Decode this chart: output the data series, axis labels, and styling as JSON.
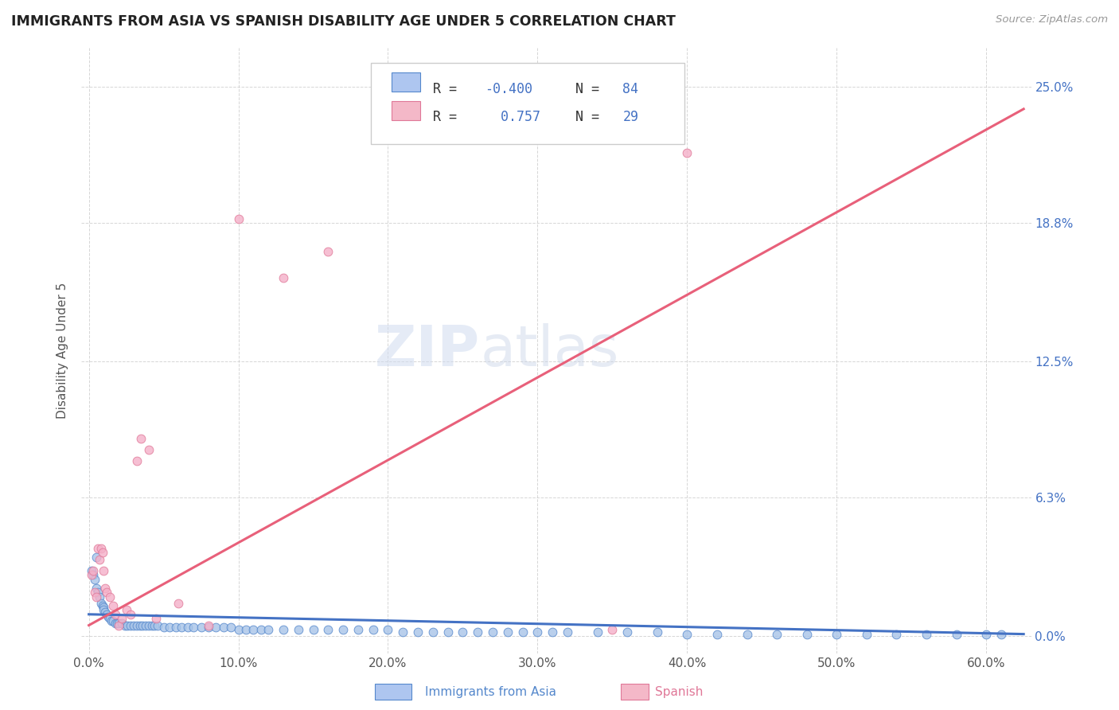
{
  "title": "IMMIGRANTS FROM ASIA VS SPANISH DISABILITY AGE UNDER 5 CORRELATION CHART",
  "source": "Source: ZipAtlas.com",
  "ylabel_label": "Disability Age Under 5",
  "blue_color": "#a8c4e8",
  "blue_edge": "#5588cc",
  "pink_color": "#f4b0c8",
  "pink_edge": "#e07898",
  "blue_line_color": "#4472c4",
  "pink_line_color": "#e8607a",
  "watermark_zip": "ZIP",
  "watermark_atlas": "atlas",
  "background_color": "#ffffff",
  "grid_color": "#cccccc",
  "legend_R_color": "#4472c4",
  "legend_text_color": "#333333",
  "right_tick_color": "#4472c4",
  "blue_label": "Immigrants from Asia",
  "pink_label": "Spanish",
  "blue_points_x": [
    0.002,
    0.003,
    0.004,
    0.005,
    0.006,
    0.007,
    0.008,
    0.009,
    0.01,
    0.01,
    0.011,
    0.012,
    0.013,
    0.014,
    0.015,
    0.016,
    0.018,
    0.019,
    0.02,
    0.022,
    0.024,
    0.026,
    0.028,
    0.03,
    0.032,
    0.034,
    0.036,
    0.038,
    0.04,
    0.042,
    0.044,
    0.046,
    0.05,
    0.054,
    0.058,
    0.062,
    0.066,
    0.07,
    0.075,
    0.08,
    0.085,
    0.09,
    0.095,
    0.1,
    0.105,
    0.11,
    0.115,
    0.12,
    0.13,
    0.14,
    0.15,
    0.16,
    0.17,
    0.18,
    0.19,
    0.2,
    0.21,
    0.22,
    0.23,
    0.24,
    0.25,
    0.26,
    0.27,
    0.28,
    0.29,
    0.3,
    0.31,
    0.32,
    0.34,
    0.36,
    0.38,
    0.4,
    0.42,
    0.44,
    0.46,
    0.48,
    0.5,
    0.52,
    0.54,
    0.56,
    0.58,
    0.6,
    0.61,
    0.005
  ],
  "blue_points_y": [
    0.03,
    0.028,
    0.026,
    0.022,
    0.02,
    0.018,
    0.015,
    0.014,
    0.013,
    0.012,
    0.011,
    0.01,
    0.009,
    0.008,
    0.007,
    0.007,
    0.006,
    0.006,
    0.006,
    0.006,
    0.005,
    0.005,
    0.005,
    0.005,
    0.005,
    0.005,
    0.005,
    0.005,
    0.005,
    0.005,
    0.005,
    0.005,
    0.004,
    0.004,
    0.004,
    0.004,
    0.004,
    0.004,
    0.004,
    0.004,
    0.004,
    0.004,
    0.004,
    0.003,
    0.003,
    0.003,
    0.003,
    0.003,
    0.003,
    0.003,
    0.003,
    0.003,
    0.003,
    0.003,
    0.003,
    0.003,
    0.002,
    0.002,
    0.002,
    0.002,
    0.002,
    0.002,
    0.002,
    0.002,
    0.002,
    0.002,
    0.002,
    0.002,
    0.002,
    0.002,
    0.002,
    0.001,
    0.001,
    0.001,
    0.001,
    0.001,
    0.001,
    0.001,
    0.001,
    0.001,
    0.001,
    0.001,
    0.001,
    0.036
  ],
  "pink_points_x": [
    0.002,
    0.003,
    0.004,
    0.005,
    0.006,
    0.007,
    0.008,
    0.009,
    0.01,
    0.011,
    0.012,
    0.014,
    0.016,
    0.018,
    0.02,
    0.022,
    0.025,
    0.028,
    0.032,
    0.035,
    0.04,
    0.045,
    0.06,
    0.08,
    0.1,
    0.13,
    0.16,
    0.4,
    0.35
  ],
  "pink_points_y": [
    0.028,
    0.03,
    0.02,
    0.018,
    0.04,
    0.035,
    0.04,
    0.038,
    0.03,
    0.022,
    0.02,
    0.018,
    0.014,
    0.01,
    0.005,
    0.008,
    0.012,
    0.01,
    0.08,
    0.09,
    0.085,
    0.008,
    0.015,
    0.005,
    0.19,
    0.163,
    0.175,
    0.22,
    0.003
  ],
  "blue_line_x0": 0.0,
  "blue_line_x1": 0.625,
  "blue_line_y0": 0.01,
  "blue_line_y1": 0.001,
  "pink_line_x0": 0.0,
  "pink_line_x1": 0.625,
  "pink_line_y0": 0.005,
  "pink_line_y1": 0.24,
  "xlim_lo": -0.005,
  "xlim_hi": 0.63,
  "ylim_lo": -0.008,
  "ylim_hi": 0.268,
  "xtick_vals": [
    0.0,
    0.1,
    0.2,
    0.3,
    0.4,
    0.5,
    0.6
  ],
  "xtick_labels": [
    "0.0%",
    "10.0%",
    "20.0%",
    "30.0%",
    "40.0%",
    "50.0%",
    "60.0%"
  ],
  "ytick_vals": [
    0.0,
    0.063,
    0.125,
    0.188,
    0.25
  ],
  "ytick_labels": [
    "0.0%",
    "6.3%",
    "12.5%",
    "18.8%",
    "25.0%"
  ]
}
